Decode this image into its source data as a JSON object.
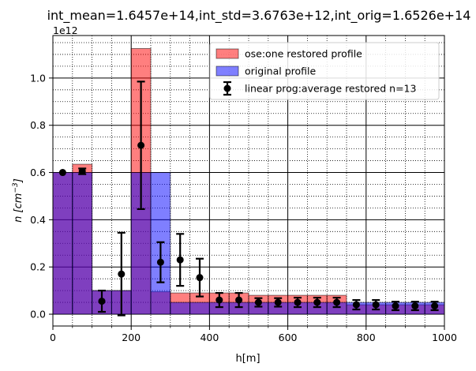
{
  "chart_data": {
    "type": "bar",
    "title": "int_mean=1.6457e+14,int_std=3.6763e+12,int_orig=1.6526e+14",
    "xlabel": "h[m]",
    "ylabel": "n [cm^-3]",
    "y_multiplier": "1e12",
    "xlim": [
      0,
      1000
    ],
    "ylim": [
      -0.05,
      1.18
    ],
    "x_ticks": [
      0,
      200,
      400,
      600,
      800,
      1000
    ],
    "x_tick_labels": [
      "0",
      "200",
      "400",
      "600",
      "800",
      "1000"
    ],
    "y_ticks": [
      0.0,
      0.2,
      0.4,
      0.6,
      0.8,
      1.0
    ],
    "y_tick_labels": [
      "0.0",
      "0.2",
      "0.4",
      "0.6",
      "0.8",
      "1.0"
    ],
    "grid": "major solid, minor dotted",
    "legend_position": "upper-right",
    "bin_width": 50,
    "bin_centers": [
      25,
      75,
      125,
      175,
      225,
      275,
      325,
      375,
      425,
      475,
      525,
      575,
      625,
      675,
      725,
      775,
      825,
      875,
      925,
      975
    ],
    "series": [
      {
        "name": "ose:one restored profile",
        "kind": "bar",
        "color": "#ff0000",
        "values": [
          0.6,
          0.635,
          0.1,
          0.1,
          1.125,
          0.095,
          0.09,
          0.09,
          0.09,
          0.09,
          0.08,
          0.08,
          0.08,
          0.08,
          0.08,
          0.04,
          0.04,
          0.04,
          0.04,
          0.04
        ]
      },
      {
        "name": "original profile",
        "kind": "bar",
        "color": "#0000ff",
        "values": [
          0.6,
          0.6,
          0.1,
          0.1,
          0.6,
          0.6,
          0.05,
          0.05,
          0.05,
          0.05,
          0.05,
          0.05,
          0.05,
          0.05,
          0.05,
          0.05,
          0.05,
          0.05,
          0.05,
          0.05
        ]
      },
      {
        "name": "linear prog:average restored n=13",
        "kind": "errorbar",
        "color": "#000000",
        "values": [
          0.6,
          0.605,
          0.055,
          0.17,
          0.715,
          0.22,
          0.23,
          0.155,
          0.06,
          0.06,
          0.05,
          0.05,
          0.05,
          0.05,
          0.05,
          0.04,
          0.04,
          0.035,
          0.035,
          0.035
        ],
        "errors": [
          0.0,
          0.012,
          0.045,
          0.175,
          0.27,
          0.085,
          0.11,
          0.08,
          0.03,
          0.03,
          0.018,
          0.018,
          0.02,
          0.02,
          0.02,
          0.02,
          0.02,
          0.018,
          0.018,
          0.018
        ]
      }
    ]
  }
}
